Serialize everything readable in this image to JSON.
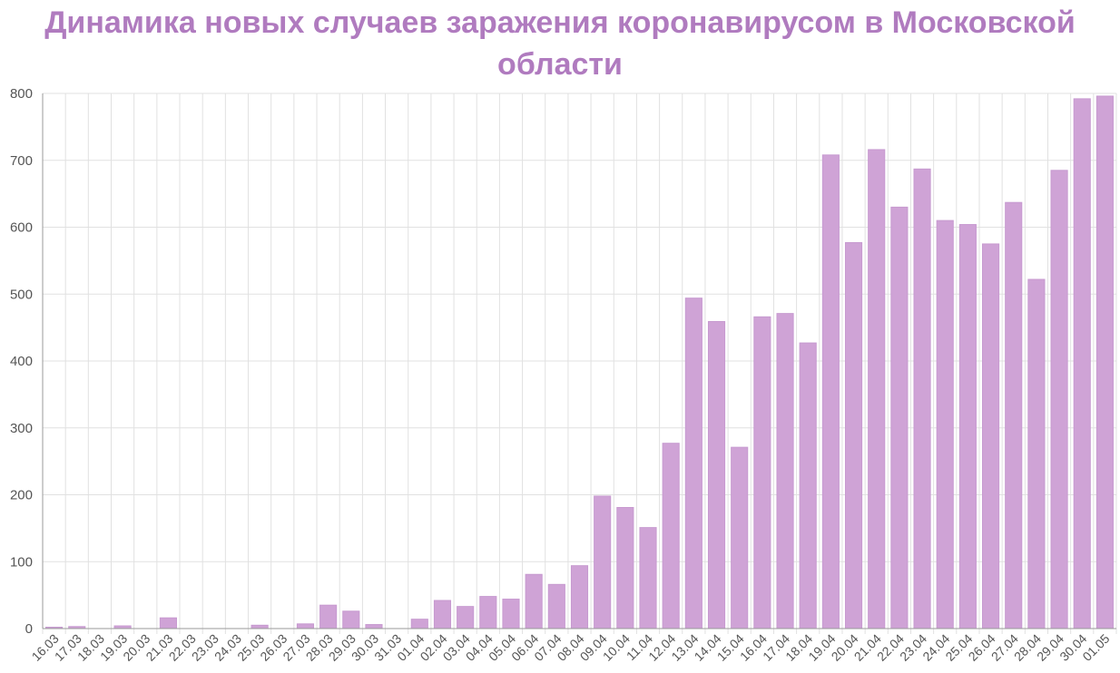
{
  "chart_data": {
    "type": "bar",
    "title": "Динамика новых случаев заражения коронавирусом в Московской области",
    "xlabel": "",
    "ylabel": "",
    "ylim": [
      0,
      800
    ],
    "yticks": [
      0,
      100,
      200,
      300,
      400,
      500,
      600,
      700,
      800
    ],
    "grid": true,
    "bar_color": "#cfa3d6",
    "bar_border_color": "#c79ad0",
    "title_color": "#b07bbf",
    "categories": [
      "16.03",
      "17.03",
      "18.03",
      "19.03",
      "20.03",
      "21.03",
      "22.03",
      "23.03",
      "24.03",
      "25.03",
      "26.03",
      "27.03",
      "28.03",
      "29.03",
      "30.03",
      "31.03",
      "01.04",
      "02.04",
      "03.04",
      "04.04",
      "05.04",
      "06.04",
      "07.04",
      "08.04",
      "09.04",
      "10.04",
      "11.04",
      "12.04",
      "13.04",
      "14.04",
      "15.04",
      "16.04",
      "17.04",
      "18.04",
      "19.04",
      "20.04",
      "21.04",
      "22.04",
      "23.04",
      "24.04",
      "25.04",
      "26.04",
      "27.04",
      "28.04",
      "29.04",
      "30.04",
      "01.05"
    ],
    "values": [
      2,
      3,
      0,
      4,
      0,
      16,
      0,
      0,
      0,
      5,
      0,
      7,
      35,
      26,
      6,
      0,
      14,
      42,
      33,
      48,
      44,
      81,
      66,
      94,
      198,
      181,
      151,
      277,
      494,
      459,
      271,
      466,
      471,
      427,
      708,
      577,
      716,
      630,
      687,
      610,
      604,
      575,
      637,
      522,
      685,
      792,
      796
    ]
  }
}
